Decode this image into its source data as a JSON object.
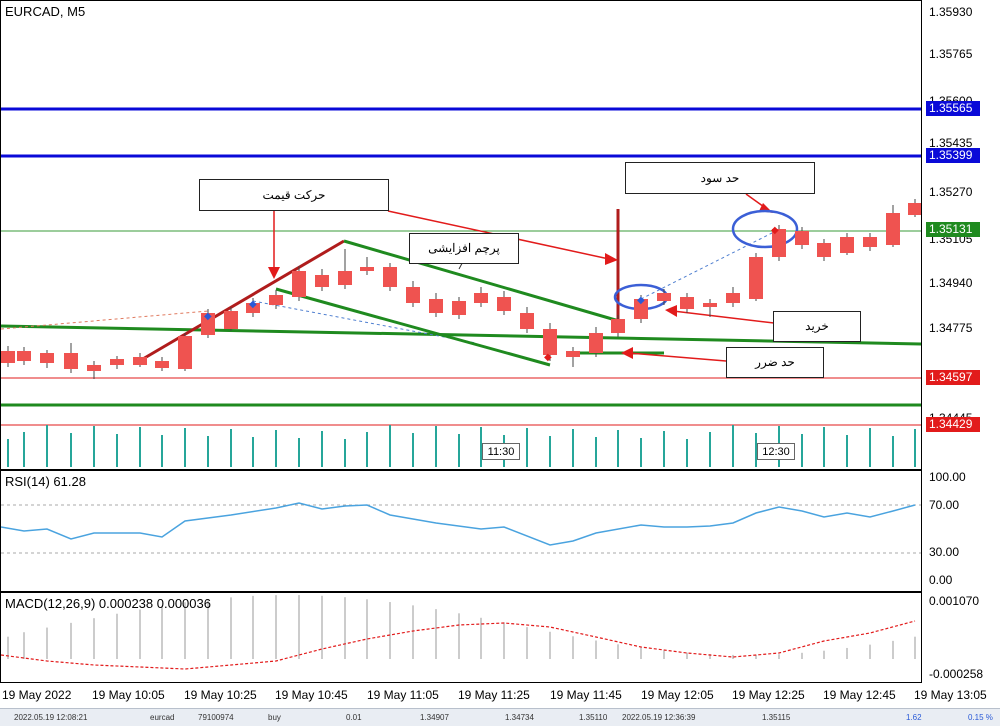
{
  "chart": {
    "symbol_title": "EURCAD, M5",
    "price_ticks": [
      "1.35930",
      "1.35765",
      "1.35600",
      "1.35435",
      "1.35270",
      "1.35105",
      "1.34940",
      "1.34775",
      "1.34445"
    ],
    "price_tags": [
      {
        "label": "1.35565",
        "color": "#0a0ad8"
      },
      {
        "label": "1.35399",
        "color": "#0a0ad8"
      },
      {
        "label": "1.35131",
        "color": "#1f8a1f"
      },
      {
        "label": "1.34597",
        "color": "#e21b1b"
      },
      {
        "label": "1.34429",
        "color": "#e21b1b"
      }
    ],
    "callouts": {
      "price_move": "حرکت قیمت",
      "bull_flag": "پرچم افزایشی",
      "take_profit": "حد سود",
      "buy": "خرید",
      "stop_loss": "حد ضرر"
    },
    "volume_time_labels": [
      "11:30",
      "12:30"
    ],
    "up_color": "#26a69a",
    "down_color": "#ef5350"
  },
  "rsi": {
    "title": "RSI(14) 61.28",
    "ticks": [
      "100.00",
      "70.00",
      "30.00",
      "0.00"
    ]
  },
  "macd": {
    "title": "MACD(12,26,9) 0.000238 0.000036",
    "ticks": [
      "0.001070",
      "-0.000258"
    ]
  },
  "time_axis": [
    "19 May 2022",
    "19 May 10:05",
    "19 May 10:25",
    "19 May 10:45",
    "19 May 11:05",
    "19 May 11:25",
    "19 May 11:45",
    "19 May 12:05",
    "19 May 12:25",
    "19 May 12:45",
    "19 May 13:05"
  ],
  "statusbar": [
    "2022.05.19 12:08:21",
    "eurcad",
    "79100974",
    "buy",
    "0.01",
    "1.34907",
    "1.34734",
    "1.35110",
    "2022.05.19 12:36:39",
    "1.35115",
    "1.62",
    "0.15 %"
  ]
}
